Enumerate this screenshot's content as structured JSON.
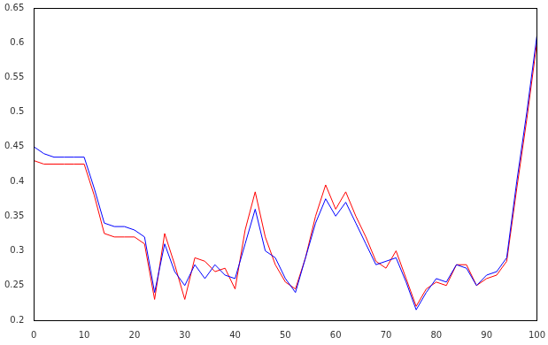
{
  "chart_data": {
    "type": "line",
    "x": [
      0,
      2,
      4,
      6,
      8,
      10,
      12,
      14,
      16,
      18,
      20,
      22,
      24,
      26,
      28,
      30,
      32,
      34,
      36,
      38,
      40,
      42,
      44,
      46,
      48,
      50,
      52,
      54,
      56,
      58,
      60,
      62,
      64,
      66,
      68,
      70,
      72,
      74,
      76,
      78,
      80,
      82,
      84,
      86,
      88,
      90,
      92,
      94,
      96,
      98,
      100
    ],
    "series": [
      {
        "color": "#0000ff",
        "values": [
          0.45,
          0.44,
          0.435,
          0.435,
          0.435,
          0.435,
          0.39,
          0.34,
          0.335,
          0.335,
          0.33,
          0.32,
          0.24,
          0.31,
          0.27,
          0.25,
          0.28,
          0.26,
          0.28,
          0.265,
          0.26,
          0.31,
          0.36,
          0.3,
          0.29,
          0.26,
          0.24,
          0.29,
          0.34,
          0.375,
          0.35,
          0.37,
          0.34,
          0.31,
          0.28,
          0.285,
          0.29,
          0.255,
          0.215,
          0.24,
          0.26,
          0.255,
          0.28,
          0.275,
          0.25,
          0.265,
          0.27,
          0.29,
          0.4,
          0.5,
          0.61
        ]
      },
      {
        "color": "#ff0000",
        "values": [
          0.43,
          0.425,
          0.425,
          0.425,
          0.425,
          0.425,
          0.38,
          0.325,
          0.32,
          0.32,
          0.32,
          0.31,
          0.23,
          0.325,
          0.28,
          0.23,
          0.29,
          0.285,
          0.27,
          0.275,
          0.245,
          0.33,
          0.385,
          0.32,
          0.28,
          0.255,
          0.245,
          0.29,
          0.35,
          0.395,
          0.36,
          0.385,
          0.35,
          0.32,
          0.285,
          0.275,
          0.3,
          0.26,
          0.22,
          0.245,
          0.255,
          0.25,
          0.28,
          0.28,
          0.25,
          0.26,
          0.265,
          0.285,
          0.39,
          0.49,
          0.6
        ]
      }
    ],
    "xlim": [
      0,
      100
    ],
    "xticks": [
      0,
      10,
      20,
      30,
      40,
      50,
      60,
      70,
      80,
      90,
      100
    ],
    "ylim": [
      0.2,
      0.65
    ],
    "yticks": [
      0.2,
      0.25,
      0.3,
      0.35,
      0.4,
      0.45,
      0.5,
      0.55,
      0.6,
      0.65
    ],
    "grid": false
  }
}
